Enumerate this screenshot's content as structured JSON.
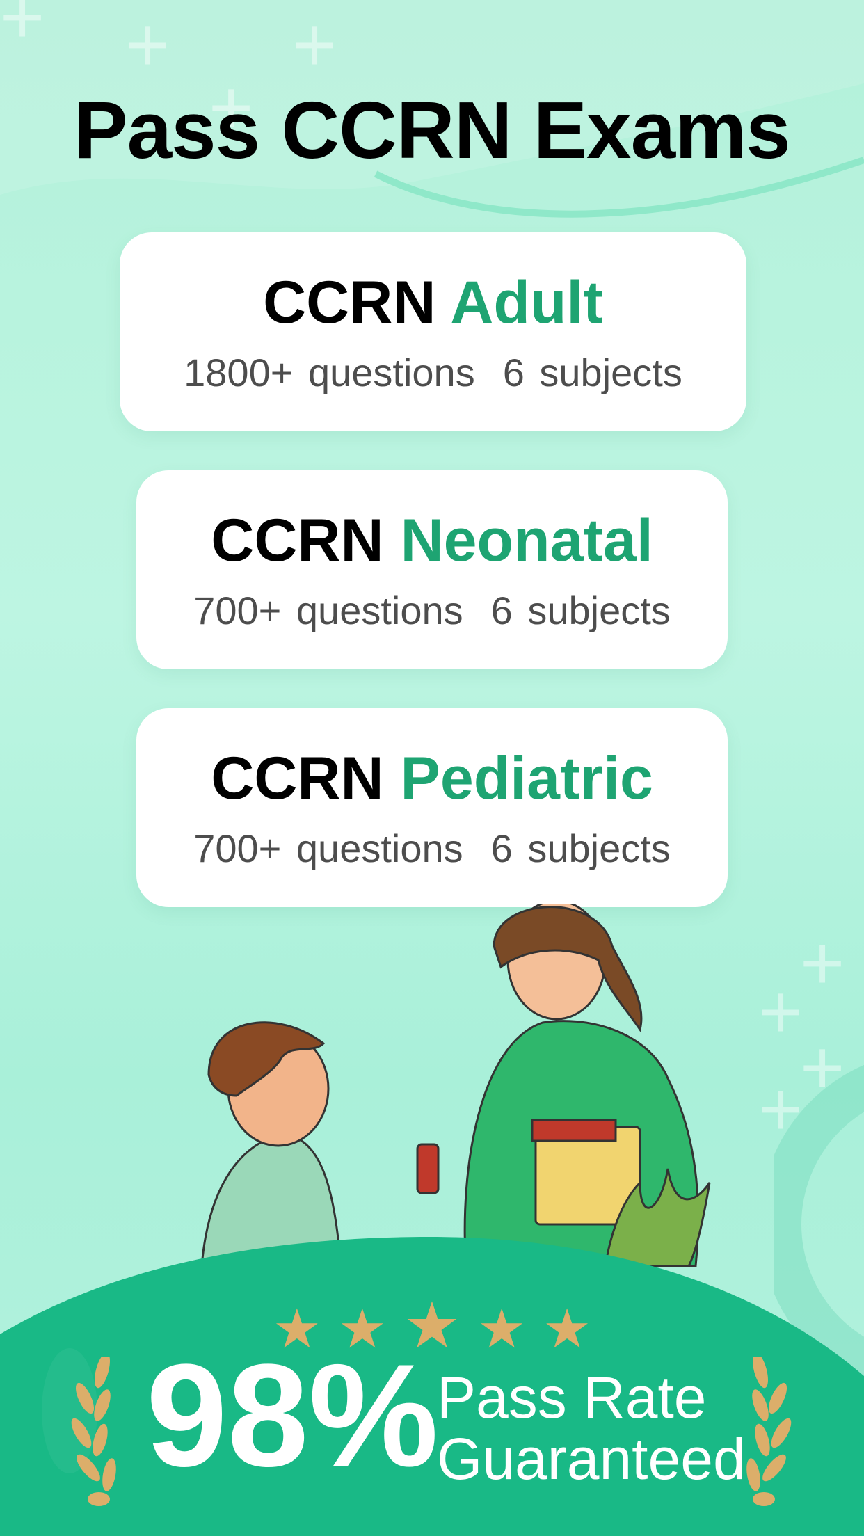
{
  "headline": "Pass CCRN Exams",
  "cards": [
    {
      "prefix": "CCRN",
      "name": "Adult",
      "questions": "1800+ questions",
      "subjects": "6 subjects"
    },
    {
      "prefix": "CCRN",
      "name": "Neonatal",
      "questions": "700+ questions",
      "subjects": "6 subjects"
    },
    {
      "prefix": "CCRN",
      "name": "Pediatric",
      "questions": "700+ questions",
      "subjects": "6 subjects"
    }
  ],
  "rating": {
    "stars": 5,
    "max": 5
  },
  "badge": {
    "percent": "98%",
    "line1": "Pass Rate",
    "line2": "Guaranteed"
  },
  "colors": {
    "accent": "#1ea472",
    "banner": "#19b986",
    "gold": "#dcae6a",
    "background": "#b3f1da"
  }
}
